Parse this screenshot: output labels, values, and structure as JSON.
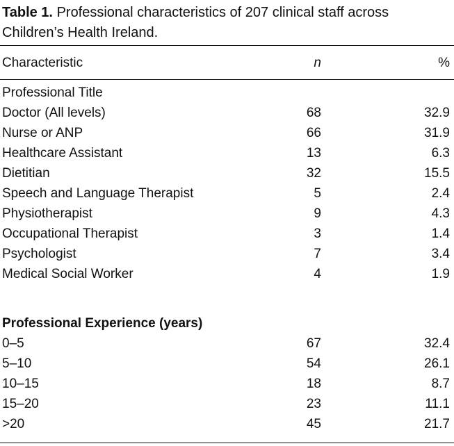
{
  "caption": {
    "label": "Table 1.",
    "text": "Professional characteristics of 207 clinical staff across Children’s Health Ireland."
  },
  "headers": {
    "characteristic": "Characteristic",
    "n": "n",
    "percent": "%"
  },
  "groups": [
    {
      "title": "Professional Title",
      "rows": [
        {
          "label": "Doctor (All levels)",
          "n": "68",
          "percent": "32.9"
        },
        {
          "label": "Nurse or ANP",
          "n": "66",
          "percent": "31.9"
        },
        {
          "label": "Healthcare Assistant",
          "n": "13",
          "percent": "6.3"
        },
        {
          "label": "Dietitian",
          "n": "32",
          "percent": "15.5"
        },
        {
          "label": "Speech and Language Therapist",
          "n": "5",
          "percent": "2.4"
        },
        {
          "label": "Physiotherapist",
          "n": "9",
          "percent": "4.3"
        },
        {
          "label": "Occupational Therapist",
          "n": "3",
          "percent": "1.4"
        },
        {
          "label": "Psychologist",
          "n": "7",
          "percent": "3.4"
        },
        {
          "label": "Medical Social Worker",
          "n": "4",
          "percent": "1.9"
        }
      ]
    },
    {
      "title": "Professional Experience (years)",
      "rows": [
        {
          "label": "0–5",
          "n": "67",
          "percent": "32.4"
        },
        {
          "label": "5–10",
          "n": "54",
          "percent": "26.1"
        },
        {
          "label": "10–15",
          "n": "18",
          "percent": "8.7"
        },
        {
          "label": "15–20",
          "n": "23",
          "percent": "11.1"
        },
        {
          "label": ">20",
          "n": "45",
          "percent": "21.7"
        }
      ]
    }
  ]
}
